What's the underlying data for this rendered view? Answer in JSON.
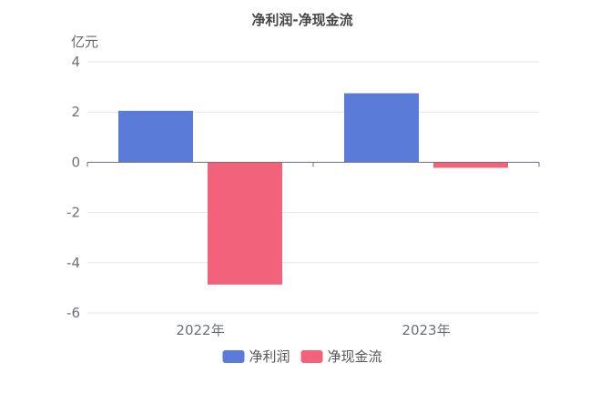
{
  "chart_data": {
    "type": "bar",
    "title": "净利润-净现金流",
    "ylabel": "亿元",
    "categories": [
      "2022年",
      "2023年"
    ],
    "series": [
      {
        "name": "净利润",
        "values": [
          2.05,
          2.75
        ],
        "color": "#5b7bd9"
      },
      {
        "name": "净现金流",
        "values": [
          -4.87,
          -0.22
        ],
        "color": "#f2637b"
      }
    ],
    "ylim": [
      -6,
      4
    ],
    "yticks": [
      4,
      2,
      0,
      -2,
      -4,
      -6
    ],
    "grid": true,
    "legend_position": "bottom-center"
  }
}
